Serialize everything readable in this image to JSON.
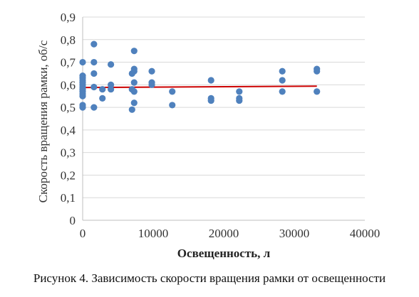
{
  "chart_data": {
    "type": "scatter",
    "xlabel": "Освещенность, л",
    "ylabel": "Скорость вращения рамки, об/с",
    "xlim": [
      0,
      40000
    ],
    "ylim": [
      0,
      0.9
    ],
    "x_ticks": [
      "0",
      "10000",
      "20000",
      "30000",
      "40000"
    ],
    "y_ticks": [
      "0",
      "0,1",
      "0,2",
      "0,3",
      "0,4",
      "0,5",
      "0,6",
      "0,7",
      "0,8",
      "0,9"
    ],
    "grid": "horizontal",
    "point_color": "#4f81bd",
    "trend_color": "#cc0000",
    "points": [
      {
        "x": 0,
        "y": 0.7
      },
      {
        "x": 0,
        "y": 0.64
      },
      {
        "x": 0,
        "y": 0.63
      },
      {
        "x": 0,
        "y": 0.62
      },
      {
        "x": 0,
        "y": 0.61
      },
      {
        "x": 0,
        "y": 0.6
      },
      {
        "x": 0,
        "y": 0.59
      },
      {
        "x": 0,
        "y": 0.58
      },
      {
        "x": 0,
        "y": 0.57
      },
      {
        "x": 0,
        "y": 0.56
      },
      {
        "x": 0,
        "y": 0.55
      },
      {
        "x": 0,
        "y": 0.51
      },
      {
        "x": 0,
        "y": 0.5
      },
      {
        "x": 1600,
        "y": 0.78
      },
      {
        "x": 1600,
        "y": 0.7
      },
      {
        "x": 1600,
        "y": 0.65
      },
      {
        "x": 1600,
        "y": 0.59
      },
      {
        "x": 1600,
        "y": 0.5
      },
      {
        "x": 2800,
        "y": 0.58
      },
      {
        "x": 2800,
        "y": 0.54
      },
      {
        "x": 4000,
        "y": 0.69
      },
      {
        "x": 4000,
        "y": 0.6
      },
      {
        "x": 4000,
        "y": 0.58
      },
      {
        "x": 7000,
        "y": 0.65
      },
      {
        "x": 7000,
        "y": 0.58
      },
      {
        "x": 7000,
        "y": 0.49
      },
      {
        "x": 7300,
        "y": 0.75
      },
      {
        "x": 7300,
        "y": 0.67
      },
      {
        "x": 7300,
        "y": 0.66
      },
      {
        "x": 7300,
        "y": 0.61
      },
      {
        "x": 7300,
        "y": 0.57
      },
      {
        "x": 7300,
        "y": 0.52
      },
      {
        "x": 9800,
        "y": 0.66
      },
      {
        "x": 9800,
        "y": 0.61
      },
      {
        "x": 9800,
        "y": 0.6
      },
      {
        "x": 12700,
        "y": 0.57
      },
      {
        "x": 12700,
        "y": 0.51
      },
      {
        "x": 18200,
        "y": 0.62
      },
      {
        "x": 18200,
        "y": 0.54
      },
      {
        "x": 18200,
        "y": 0.53
      },
      {
        "x": 22200,
        "y": 0.57
      },
      {
        "x": 22200,
        "y": 0.54
      },
      {
        "x": 22200,
        "y": 0.53
      },
      {
        "x": 28300,
        "y": 0.66
      },
      {
        "x": 28300,
        "y": 0.62
      },
      {
        "x": 28300,
        "y": 0.57
      },
      {
        "x": 33200,
        "y": 0.67
      },
      {
        "x": 33200,
        "y": 0.66
      },
      {
        "x": 33200,
        "y": 0.57
      }
    ],
    "trendline": {
      "x": [
        0,
        33200
      ],
      "y": [
        0.588,
        0.594
      ]
    }
  },
  "caption": "Рисунок 4. Зависимость скорости вращения рамки от освещенности"
}
